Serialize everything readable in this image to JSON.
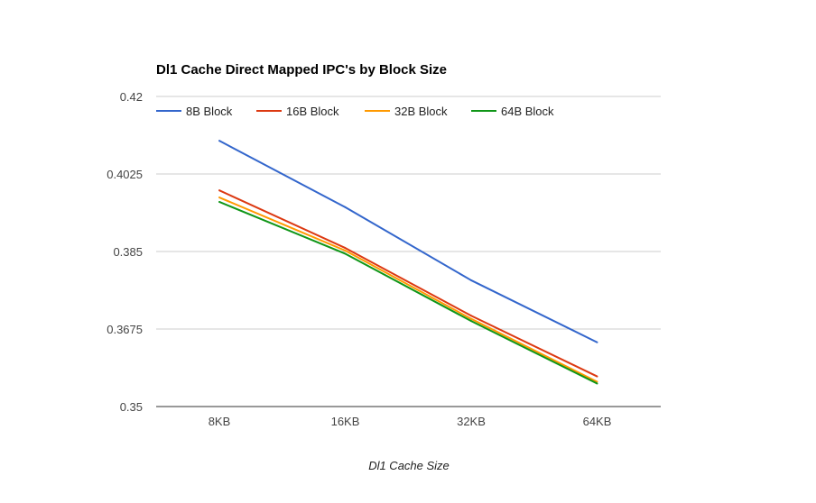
{
  "chart_data": {
    "type": "line",
    "title": "Dl1 Cache Direct Mapped IPC's by Block Size",
    "xlabel": "Dl1 Cache Size",
    "ylabel": "",
    "categories": [
      "8KB",
      "16KB",
      "32KB",
      "64KB"
    ],
    "ylim": [
      0.35,
      0.42
    ],
    "yticks": [
      {
        "value": 0.35,
        "label": "0.35"
      },
      {
        "value": 0.3675,
        "label": "0.3675"
      },
      {
        "value": 0.385,
        "label": "0.385"
      },
      {
        "value": 0.4025,
        "label": "0.4025"
      },
      {
        "value": 0.42,
        "label": "0.42"
      }
    ],
    "grid": true,
    "legend_position": "top",
    "series": [
      {
        "name": "8B Block",
        "color": "#3366cc",
        "values": [
          0.41,
          0.395,
          0.3785,
          0.3645
        ]
      },
      {
        "name": "16B Block",
        "color": "#dc3912",
        "values": [
          0.3988,
          0.3858,
          0.3705,
          0.3568
        ]
      },
      {
        "name": "32B Block",
        "color": "#ff9900",
        "values": [
          0.3972,
          0.3852,
          0.3698,
          0.3556
        ]
      },
      {
        "name": "64B Block",
        "color": "#109618",
        "values": [
          0.3962,
          0.3845,
          0.3693,
          0.3552
        ]
      }
    ]
  }
}
